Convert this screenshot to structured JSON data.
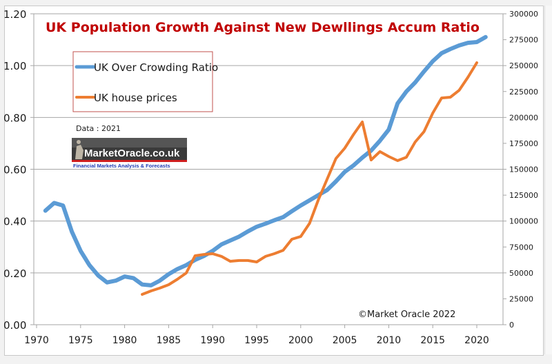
{
  "chart_data": {
    "type": "line",
    "title": "UK  Population Growth Against New Dewllings Accum Ratio",
    "xlabel": "",
    "ylabel": "",
    "y2label": "",
    "xlim": [
      1970,
      2022
    ],
    "ylim": [
      0,
      1.2
    ],
    "y2lim": [
      0,
      300000
    ],
    "grid": true,
    "legend_position": "top-left",
    "x_ticks": [
      "1970",
      "1975",
      "1980",
      "1985",
      "1990",
      "1995",
      "2000",
      "2005",
      "2010",
      "2015",
      "2020"
    ],
    "y_ticks": [
      "0.00",
      "0.20",
      "0.40",
      "0.60",
      "0.80",
      "1.00",
      "1.20"
    ],
    "y2_ticks": [
      "0",
      "25000",
      "50000",
      "75000",
      "100000",
      "125000",
      "150000",
      "175000",
      "200000",
      "225000",
      "250000",
      "275000",
      "300000"
    ],
    "series": [
      {
        "name": "UK Over Crowding Ratio",
        "axis": "left",
        "color": "#5b9bd5",
        "x": [
          1971,
          1972,
          1973,
          1974,
          1975,
          1976,
          1977,
          1978,
          1979,
          1980,
          1981,
          1982,
          1983,
          1984,
          1985,
          1986,
          1987,
          1988,
          1989,
          1990,
          1991,
          1992,
          1993,
          1994,
          1995,
          1996,
          1997,
          1998,
          1999,
          2000,
          2001,
          2002,
          2003,
          2004,
          2005,
          2006,
          2007,
          2008,
          2009,
          2010,
          2011,
          2012,
          2013,
          2014,
          2015,
          2016,
          2017,
          2018,
          2019,
          2020,
          2021
        ],
        "values": [
          0.44,
          0.47,
          0.46,
          0.36,
          0.285,
          0.23,
          0.19,
          0.163,
          0.17,
          0.186,
          0.18,
          0.155,
          0.152,
          0.17,
          0.195,
          0.215,
          0.23,
          0.25,
          0.265,
          0.285,
          0.31,
          0.325,
          0.34,
          0.36,
          0.378,
          0.39,
          0.403,
          0.415,
          0.438,
          0.46,
          0.48,
          0.5,
          0.52,
          0.553,
          0.59,
          0.615,
          0.645,
          0.672,
          0.71,
          0.753,
          0.854,
          0.9,
          0.935,
          0.977,
          1.017,
          1.048,
          1.064,
          1.078,
          1.088,
          1.091,
          1.11
        ]
      },
      {
        "name": "UK house prices",
        "axis": "right",
        "color": "#ed7d31",
        "x": [
          1982,
          1983,
          1984,
          1985,
          1986,
          1987,
          1988,
          1989,
          1990,
          1991,
          1992,
          1993,
          1994,
          1995,
          1996,
          1997,
          1998,
          1999,
          2000,
          2001,
          2002,
          2003,
          2004,
          2005,
          2006,
          2007,
          2008,
          2009,
          2010,
          2011,
          2012,
          2013,
          2014,
          2015,
          2016,
          2017,
          2018,
          2019,
          2020
        ],
        "values": [
          29300,
          32600,
          35300,
          38600,
          43900,
          49900,
          66500,
          67800,
          68500,
          65900,
          61200,
          61900,
          61900,
          60500,
          65900,
          68500,
          71800,
          82500,
          85100,
          97800,
          120400,
          140400,
          160300,
          170300,
          183600,
          195600,
          159000,
          167000,
          162300,
          158300,
          161600,
          176300,
          186200,
          204200,
          218800,
          219500,
          226200,
          238800,
          252800
        ]
      }
    ],
    "annotations": [
      "Data : 2021",
      "©Market Oracle 2022"
    ]
  },
  "logo": {
    "name": "MarketOracle.co.uk",
    "tagline": "Financial Markets Analysis & Forecasts"
  }
}
